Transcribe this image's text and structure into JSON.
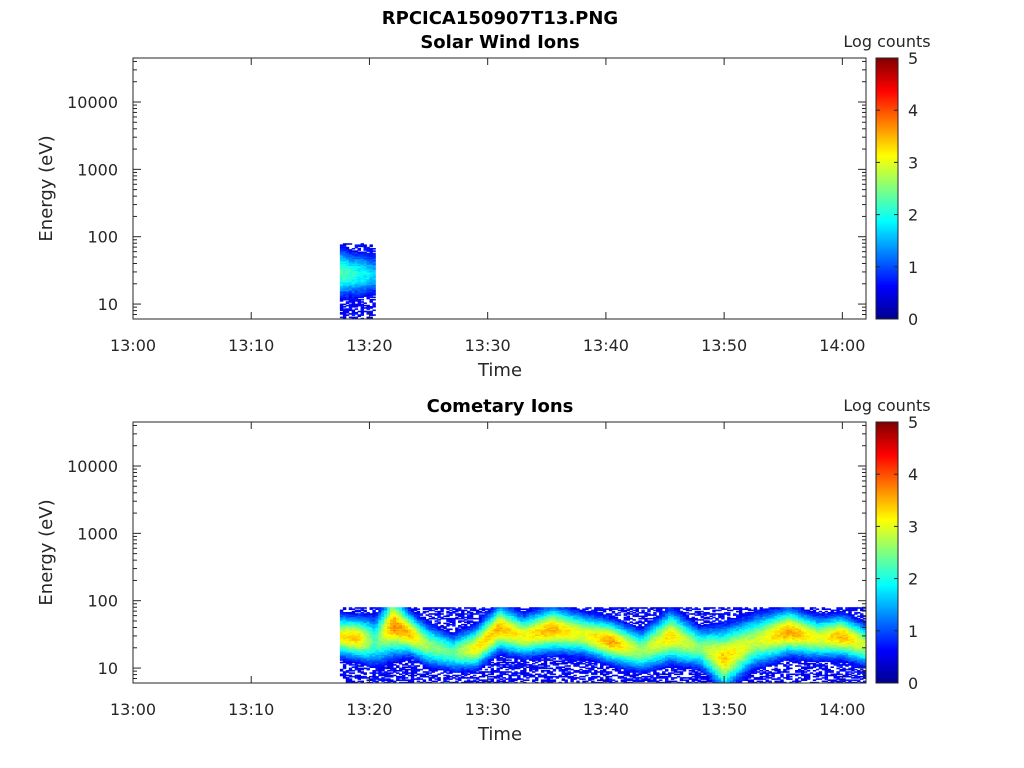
{
  "figure": {
    "title": "RPCICA150907T13.PNG"
  },
  "chart_data": [
    {
      "type": "heatmap",
      "title": "Solar Wind Ions",
      "xlabel": "Time",
      "ylabel": "Energy (eV)",
      "x_ticks": [
        "13:00",
        "13:10",
        "13:20",
        "13:30",
        "13:40",
        "13:50",
        "14:00"
      ],
      "y_ticks": [
        "10",
        "100",
        "1000",
        "10000"
      ],
      "y_scale": "log",
      "ylim": [
        6,
        45000
      ],
      "xlim_minutes": [
        0,
        62
      ],
      "colorbar": {
        "label": "Log counts",
        "ticks": [
          "0",
          "1",
          "2",
          "3",
          "4",
          "5"
        ],
        "range": [
          0,
          5
        ],
        "colormap": "jet"
      },
      "data_window_minutes": [
        17.5,
        20.5
      ],
      "energy_max_ev": 80,
      "intensity_profile": [
        {
          "t": 17.5,
          "peak_energy_ev": 30,
          "peak_log_counts": 2.3,
          "width_decades": 0.25
        },
        {
          "t": 18.5,
          "peak_energy_ev": 28,
          "peak_log_counts": 2.1,
          "width_decades": 0.22
        },
        {
          "t": 19.5,
          "peak_energy_ev": 28,
          "peak_log_counts": 1.9,
          "width_decades": 0.22
        },
        {
          "t": 20.5,
          "peak_energy_ev": 28,
          "peak_log_counts": 1.6,
          "width_decades": 0.2
        }
      ]
    },
    {
      "type": "heatmap",
      "title": "Cometary Ions",
      "xlabel": "Time",
      "ylabel": "Energy (eV)",
      "x_ticks": [
        "13:00",
        "13:10",
        "13:20",
        "13:30",
        "13:40",
        "13:50",
        "14:00"
      ],
      "y_ticks": [
        "10",
        "100",
        "1000",
        "10000"
      ],
      "y_scale": "log",
      "ylim": [
        6,
        45000
      ],
      "xlim_minutes": [
        0,
        62
      ],
      "colorbar": {
        "label": "Log counts",
        "ticks": [
          "0",
          "1",
          "2",
          "3",
          "4",
          "5"
        ],
        "range": [
          0,
          5
        ],
        "colormap": "jet"
      },
      "data_window_minutes": [
        17.5,
        62
      ],
      "energy_max_ev": 80,
      "intensity_profile": [
        {
          "t": 17.5,
          "peak_energy_ev": 30,
          "peak_log_counts": 3.2,
          "width_decades": 0.2
        },
        {
          "t": 19.0,
          "peak_energy_ev": 28,
          "peak_log_counts": 3.4,
          "width_decades": 0.2
        },
        {
          "t": 20.5,
          "peak_energy_ev": 25,
          "peak_log_counts": 2.2,
          "width_decades": 0.25
        },
        {
          "t": 22.0,
          "peak_energy_ev": 45,
          "peak_log_counts": 3.7,
          "width_decades": 0.3
        },
        {
          "t": 23.5,
          "peak_energy_ev": 32,
          "peak_log_counts": 3.4,
          "width_decades": 0.2
        },
        {
          "t": 25.0,
          "peak_energy_ev": 22,
          "peak_log_counts": 2.6,
          "width_decades": 0.2
        },
        {
          "t": 27.0,
          "peak_energy_ev": 17,
          "peak_log_counts": 2.3,
          "width_decades": 0.18
        },
        {
          "t": 29.0,
          "peak_energy_ev": 20,
          "peak_log_counts": 3.2,
          "width_decades": 0.2
        },
        {
          "t": 31.0,
          "peak_energy_ev": 40,
          "peak_log_counts": 3.5,
          "width_decades": 0.22
        },
        {
          "t": 33.0,
          "peak_energy_ev": 30,
          "peak_log_counts": 3.1,
          "width_decades": 0.2
        },
        {
          "t": 35.5,
          "peak_energy_ev": 38,
          "peak_log_counts": 3.5,
          "width_decades": 0.22
        },
        {
          "t": 38.0,
          "peak_energy_ev": 32,
          "peak_log_counts": 3.0,
          "width_decades": 0.2
        },
        {
          "t": 40.5,
          "peak_energy_ev": 25,
          "peak_log_counts": 3.6,
          "width_decades": 0.2
        },
        {
          "t": 43.0,
          "peak_energy_ev": 18,
          "peak_log_counts": 2.6,
          "width_decades": 0.2
        },
        {
          "t": 45.5,
          "peak_energy_ev": 30,
          "peak_log_counts": 3.3,
          "width_decades": 0.25
        },
        {
          "t": 48.0,
          "peak_energy_ev": 20,
          "peak_log_counts": 2.5,
          "width_decades": 0.2
        },
        {
          "t": 50.0,
          "peak_energy_ev": 14,
          "peak_log_counts": 3.4,
          "width_decades": 0.3
        },
        {
          "t": 52.5,
          "peak_energy_ev": 25,
          "peak_log_counts": 2.8,
          "width_decades": 0.25
        },
        {
          "t": 55.5,
          "peak_energy_ev": 35,
          "peak_log_counts": 3.6,
          "width_decades": 0.22
        },
        {
          "t": 58.0,
          "peak_energy_ev": 28,
          "peak_log_counts": 3.0,
          "width_decades": 0.2
        },
        {
          "t": 60.0,
          "peak_energy_ev": 30,
          "peak_log_counts": 3.5,
          "width_decades": 0.2
        },
        {
          "t": 62.0,
          "peak_energy_ev": 22,
          "peak_log_counts": 2.8,
          "width_decades": 0.2
        }
      ]
    }
  ]
}
